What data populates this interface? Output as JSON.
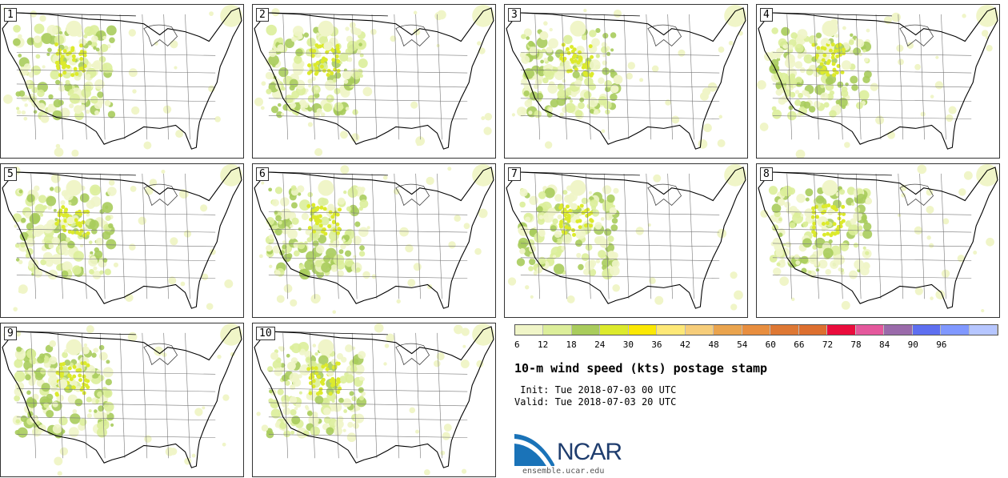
{
  "panels": [
    {
      "label": "1"
    },
    {
      "label": "2"
    },
    {
      "label": "3"
    },
    {
      "label": "4"
    },
    {
      "label": "5"
    },
    {
      "label": "6"
    },
    {
      "label": "7"
    },
    {
      "label": "8"
    },
    {
      "label": "9"
    },
    {
      "label": "10"
    }
  ],
  "colorbar": {
    "ticks": [
      "6",
      "12",
      "18",
      "24",
      "30",
      "36",
      "42",
      "48",
      "54",
      "60",
      "66",
      "72",
      "78",
      "84",
      "90",
      "96"
    ],
    "colors": [
      "#f0f5c8",
      "#dcee9a",
      "#a9cc5c",
      "#dcea2c",
      "#fbe804",
      "#fde877",
      "#f6cd7a",
      "#eaa44e",
      "#e88e3f",
      "#de7834",
      "#dd6f2f",
      "#ea0c3c",
      "#e4589c",
      "#9a6aaa",
      "#5e6ff0",
      "#8098ff",
      "#b6c6ff"
    ]
  },
  "title": "10-m wind speed (kts) postage stamp",
  "init_line": " Init: Tue 2018-07-03 00 UTC",
  "valid_line": "Valid: Tue 2018-07-03 20 UTC",
  "logo": {
    "text": "NCAR",
    "url": "ensemble.ucar.edu"
  }
}
